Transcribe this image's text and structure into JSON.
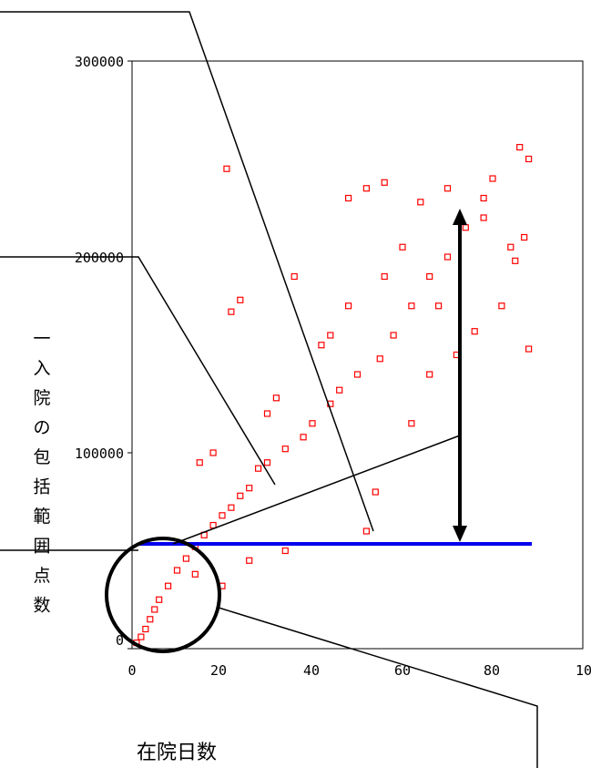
{
  "chart_data": {
    "type": "scatter",
    "title": "",
    "xlabel": "在院日数",
    "ylabel": "一入院の包括範囲点数",
    "xlim": [
      0,
      100
    ],
    "ylim": [
      0,
      300000
    ],
    "x_ticks": [
      0,
      20,
      40,
      60,
      80,
      100
    ],
    "y_ticks": [
      0,
      100000,
      200000,
      300000
    ],
    "x_tick_labels": [
      "0",
      "20",
      "40",
      "60",
      "80",
      "100"
    ],
    "y_tick_labels": [
      "0",
      "100000",
      "200000",
      "300000"
    ],
    "marker_color": "#ff0000",
    "marker": "open-square",
    "series": [
      {
        "points": [
          [
            21,
            245000
          ],
          [
            22,
            172000
          ],
          [
            24,
            178000
          ],
          [
            30,
            120000
          ],
          [
            36,
            190000
          ],
          [
            42,
            155000
          ],
          [
            48,
            230000
          ],
          [
            52,
            235000
          ],
          [
            56,
            238000
          ],
          [
            60,
            205000
          ],
          [
            64,
            228000
          ],
          [
            70,
            235000
          ],
          [
            74,
            215000
          ],
          [
            78,
            230000
          ],
          [
            80,
            240000
          ],
          [
            84,
            205000
          ],
          [
            86,
            256000
          ],
          [
            88,
            250000
          ],
          [
            87,
            210000
          ],
          [
            85,
            198000
          ],
          [
            82,
            175000
          ],
          [
            88,
            153000
          ],
          [
            76,
            162000
          ],
          [
            72,
            150000
          ],
          [
            68,
            175000
          ],
          [
            66,
            190000
          ],
          [
            62,
            175000
          ],
          [
            58,
            160000
          ],
          [
            55,
            148000
          ],
          [
            50,
            140000
          ],
          [
            46,
            132000
          ],
          [
            44,
            125000
          ],
          [
            40,
            115000
          ],
          [
            38,
            108000
          ],
          [
            34,
            102000
          ],
          [
            30,
            95000
          ],
          [
            28,
            92000
          ],
          [
            26,
            82000
          ],
          [
            24,
            78000
          ],
          [
            22,
            72000
          ],
          [
            20,
            68000
          ],
          [
            18,
            63000
          ],
          [
            16,
            58000
          ],
          [
            14,
            52000
          ],
          [
            12,
            46000
          ],
          [
            10,
            40000
          ],
          [
            8,
            32000
          ],
          [
            6,
            25000
          ],
          [
            5,
            20000
          ],
          [
            4,
            15000
          ],
          [
            3,
            10000
          ],
          [
            2,
            6000
          ],
          [
            1,
            3000
          ],
          [
            15,
            95000
          ],
          [
            18,
            100000
          ],
          [
            32,
            128000
          ],
          [
            44,
            160000
          ],
          [
            48,
            175000
          ],
          [
            56,
            190000
          ],
          [
            70,
            200000
          ],
          [
            78,
            220000
          ],
          [
            52,
            60000
          ],
          [
            54,
            80000
          ],
          [
            62,
            115000
          ],
          [
            66,
            140000
          ],
          [
            34,
            50000
          ],
          [
            26,
            45000
          ],
          [
            20,
            32000
          ],
          [
            14,
            38000
          ]
        ]
      }
    ],
    "annotations": [
      {
        "type": "hline",
        "y": 52000,
        "x_from": 2,
        "x_to": 88,
        "color": "#0000ee"
      },
      {
        "type": "double-arrow",
        "x": 73,
        "y_from": 52000,
        "y_to": 221000,
        "color": "#000000"
      },
      {
        "type": "circle",
        "cx": 7,
        "cy": 28000,
        "r_data_x": 13
      }
    ]
  }
}
